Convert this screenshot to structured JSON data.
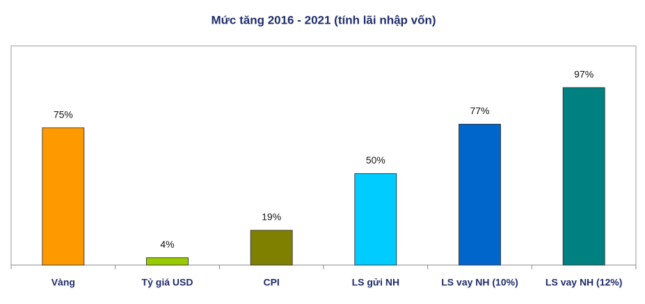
{
  "chart_data": {
    "type": "bar",
    "title": "Mức tăng 2016 - 2021 (tính lãi nhập vốn)",
    "categories": [
      "Vàng",
      "Tỷ giá USD",
      "CPI",
      "LS gửi NH",
      "LS vay NH (10%)",
      "LS vay NH (12%)"
    ],
    "values": [
      75,
      4,
      19,
      50,
      77,
      97
    ],
    "value_labels": [
      "75%",
      "4%",
      "19%",
      "50%",
      "77%",
      "97%"
    ],
    "colors": [
      "#ff9900",
      "#99cc00",
      "#808000",
      "#00ccff",
      "#0066cc",
      "#008080"
    ]
  }
}
